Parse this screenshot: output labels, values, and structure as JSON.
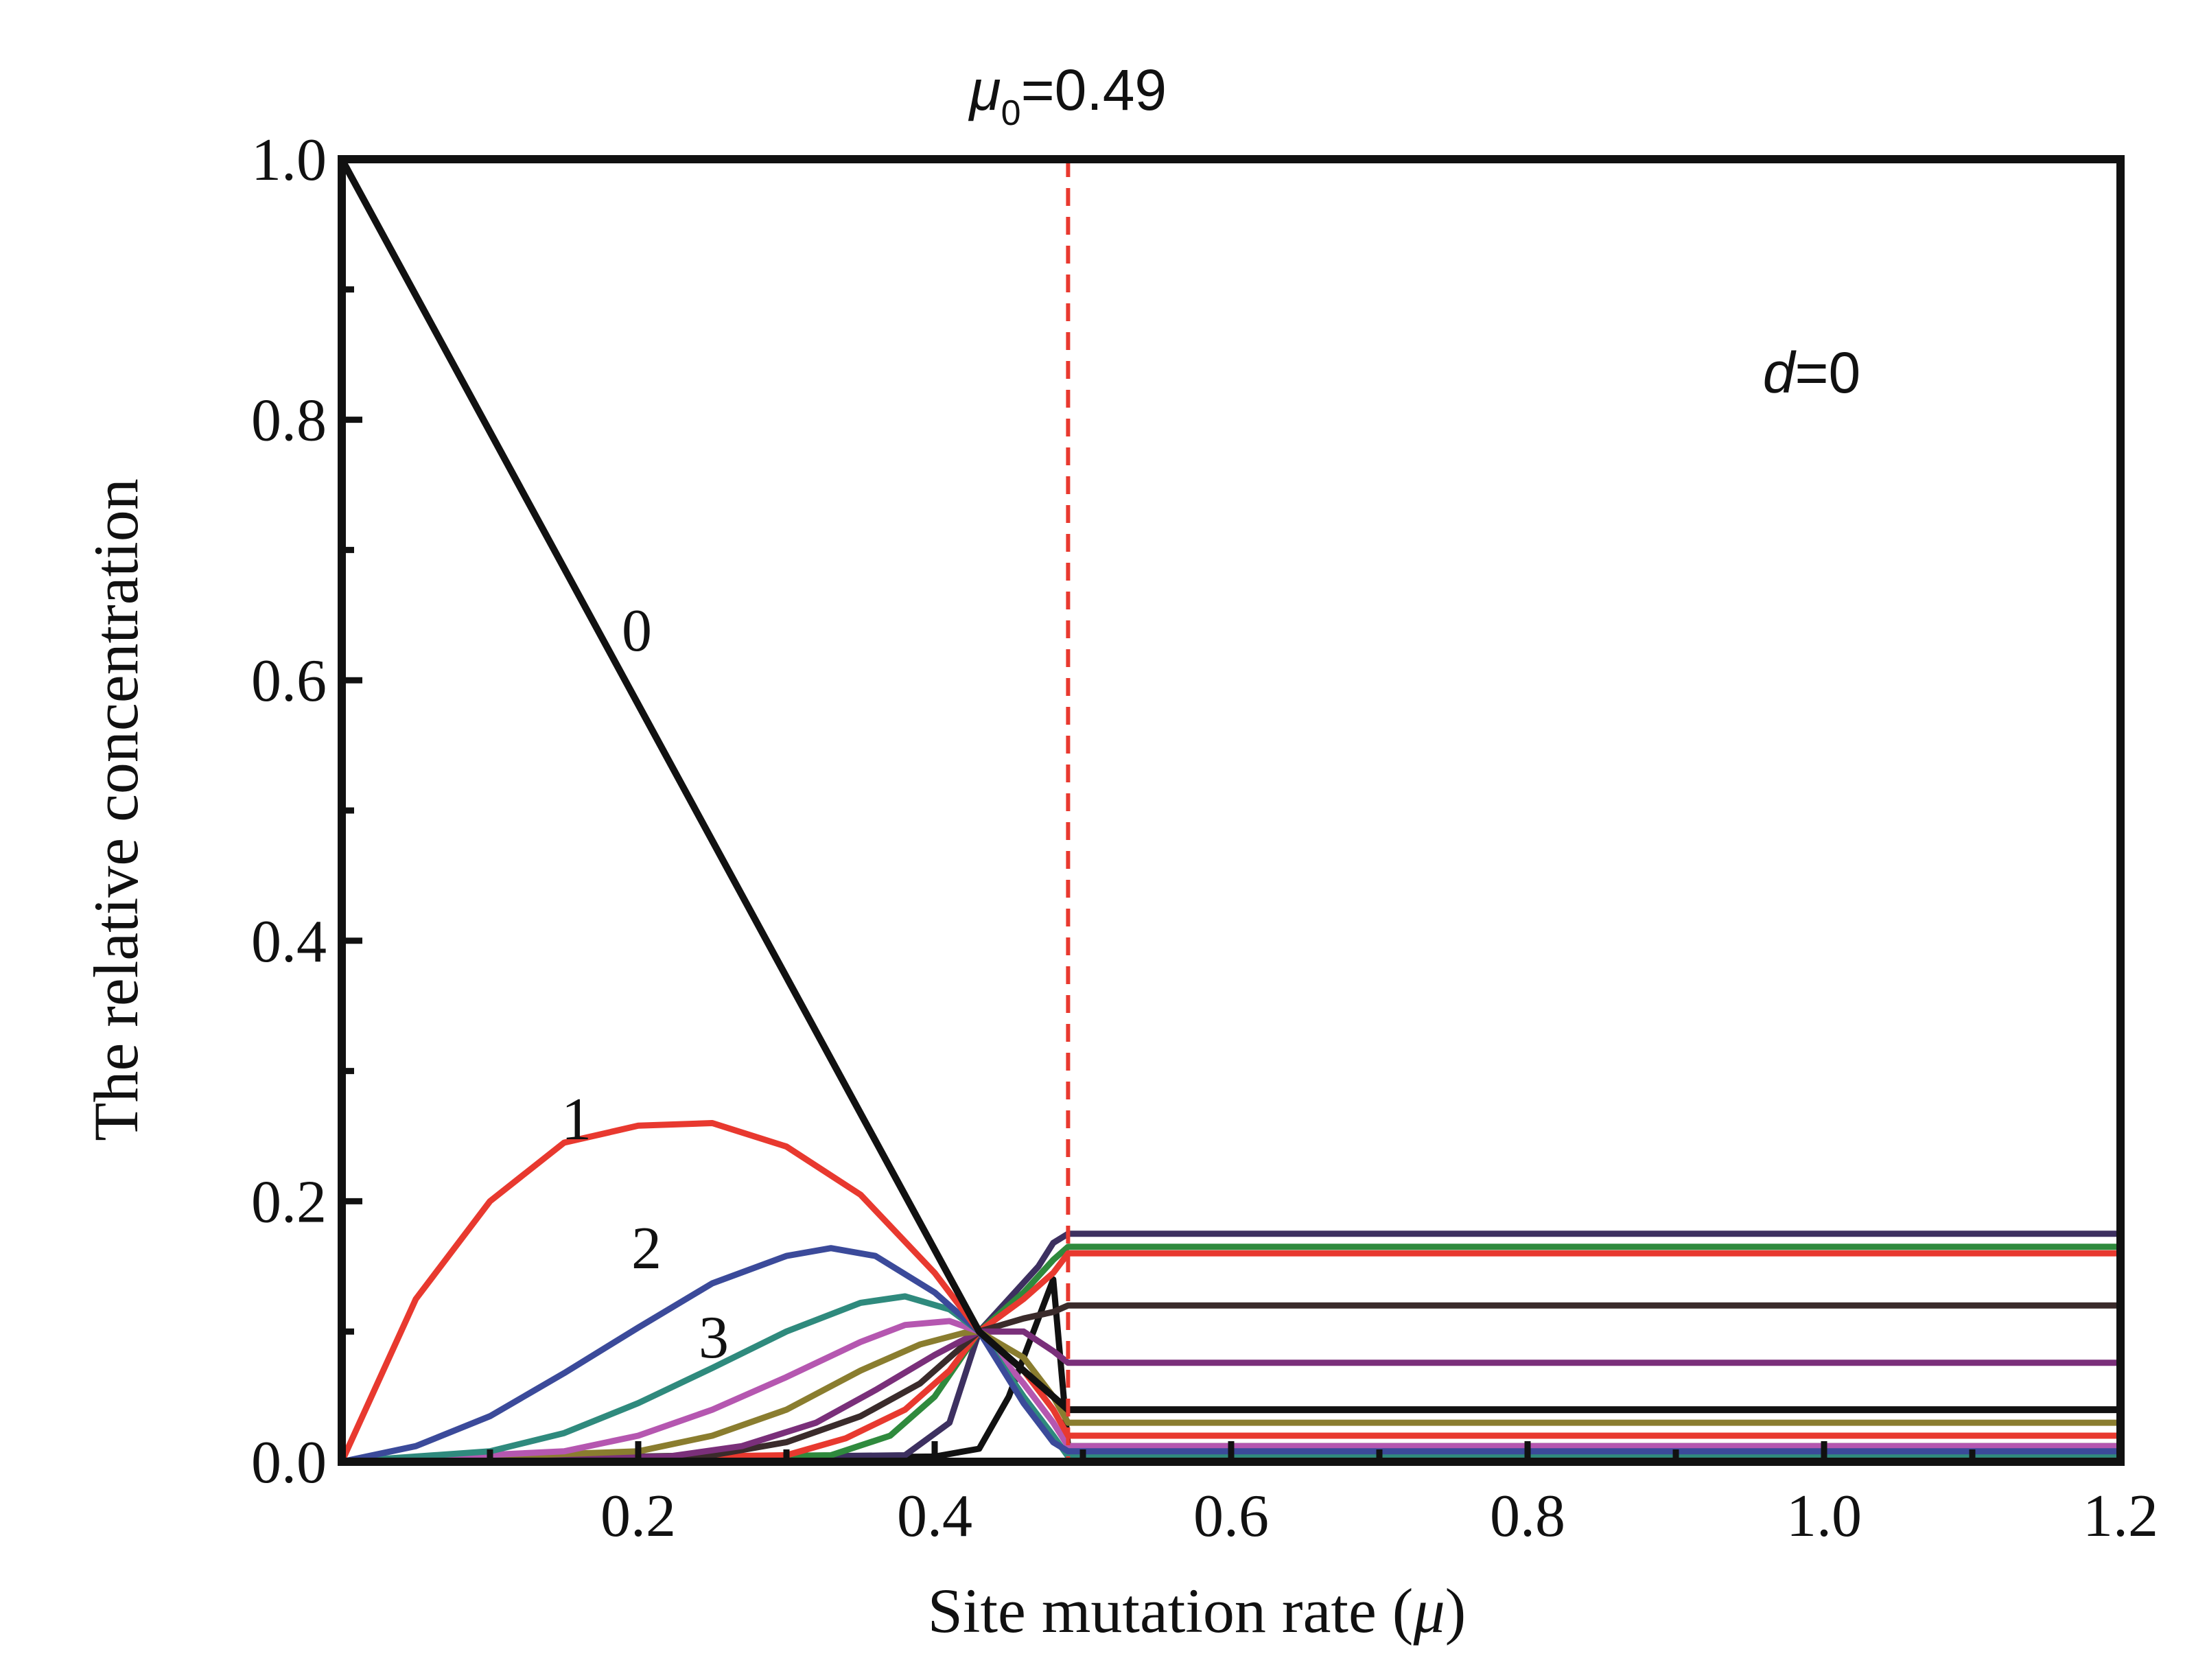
{
  "chart_data": {
    "type": "line",
    "xlabel_prefix": "Site mutation rate (",
    "xlabel_var": "μ",
    "xlabel_suffix": ")",
    "ylabel": "The relative concentration",
    "xlim": [
      0.0,
      1.2
    ],
    "ylim": [
      0.0,
      1.0
    ],
    "x_ticks": [
      0.2,
      0.4,
      0.6,
      0.8,
      1.0,
      1.2
    ],
    "x_tick_labels": [
      "0.2",
      "0.4",
      "0.6",
      "0.8",
      "1.0",
      "1.2"
    ],
    "y_ticks": [
      0.0,
      0.2,
      0.4,
      0.6,
      0.8,
      1.0
    ],
    "y_tick_labels": [
      "0.0",
      "0.2",
      "0.4",
      "0.6",
      "0.8",
      "1.0"
    ],
    "grid": false,
    "threshold": {
      "x": 0.49,
      "label_var": "μ",
      "label_sub": "0",
      "label_value": "=0.49",
      "color": "#e8392f"
    },
    "annotation": {
      "var": "d",
      "value": "=0"
    },
    "series": [
      {
        "label": "0",
        "color": "#111111",
        "x": [
          0.0,
          0.43,
          0.49,
          1.2
        ],
        "y": [
          1.0,
          0.1,
          0.04,
          0.04
        ]
      },
      {
        "label": "1",
        "color": "#e8392f",
        "x": [
          0.0,
          0.05,
          0.1,
          0.15,
          0.2,
          0.25,
          0.3,
          0.35,
          0.4,
          0.43,
          0.46,
          0.48,
          0.49,
          1.2
        ],
        "y": [
          0.0,
          0.125,
          0.2,
          0.245,
          0.258,
          0.26,
          0.242,
          0.205,
          0.145,
          0.1,
          0.07,
          0.04,
          0.02,
          0.02
        ]
      },
      {
        "label": "2",
        "color": "#3b4a9a",
        "x": [
          0.0,
          0.05,
          0.1,
          0.15,
          0.2,
          0.25,
          0.3,
          0.33,
          0.36,
          0.4,
          0.43,
          0.46,
          0.48,
          0.49,
          1.2
        ],
        "y": [
          0.0,
          0.012,
          0.035,
          0.068,
          0.103,
          0.137,
          0.158,
          0.164,
          0.158,
          0.13,
          0.1,
          0.045,
          0.015,
          0.008,
          0.008
        ]
      },
      {
        "label": "3",
        "color": "#2f8a7d",
        "x": [
          0.0,
          0.1,
          0.15,
          0.2,
          0.25,
          0.3,
          0.35,
          0.38,
          0.41,
          0.43,
          0.46,
          0.48,
          0.49,
          1.2
        ],
        "y": [
          0.0,
          0.008,
          0.022,
          0.045,
          0.072,
          0.1,
          0.122,
          0.127,
          0.117,
          0.1,
          0.05,
          0.02,
          0.004,
          0.004
        ]
      },
      {
        "label": "",
        "color": "#b557b0",
        "x": [
          0.0,
          0.15,
          0.2,
          0.25,
          0.3,
          0.35,
          0.38,
          0.41,
          0.43,
          0.46,
          0.48,
          0.49,
          1.2
        ],
        "y": [
          0.0,
          0.008,
          0.02,
          0.04,
          0.065,
          0.092,
          0.105,
          0.108,
          0.1,
          0.06,
          0.03,
          0.012,
          0.012
        ]
      },
      {
        "label": "",
        "color": "#8a7d2f",
        "x": [
          0.0,
          0.2,
          0.25,
          0.3,
          0.35,
          0.39,
          0.42,
          0.43,
          0.46,
          0.48,
          0.49,
          1.2
        ],
        "y": [
          0.0,
          0.008,
          0.02,
          0.04,
          0.07,
          0.09,
          0.099,
          0.1,
          0.08,
          0.05,
          0.03,
          0.03
        ]
      },
      {
        "label": "",
        "color": "#7a2f7a",
        "x": [
          0.0,
          0.22,
          0.27,
          0.32,
          0.36,
          0.4,
          0.43,
          0.46,
          0.48,
          0.49,
          1.2
        ],
        "y": [
          0.0,
          0.004,
          0.012,
          0.03,
          0.055,
          0.082,
          0.1,
          0.1,
          0.085,
          0.076,
          0.076
        ]
      },
      {
        "label": "",
        "color": "#3a2b2b",
        "x": [
          0.0,
          0.25,
          0.3,
          0.35,
          0.39,
          0.43,
          0.46,
          0.48,
          0.49,
          1.2
        ],
        "y": [
          0.0,
          0.005,
          0.015,
          0.035,
          0.06,
          0.1,
          0.11,
          0.115,
          0.12,
          0.12
        ]
      },
      {
        "label": "",
        "color": "#e8392f",
        "x": [
          0.0,
          0.3,
          0.34,
          0.38,
          0.41,
          0.43,
          0.46,
          0.48,
          0.49,
          1.2
        ],
        "y": [
          0.0,
          0.005,
          0.018,
          0.04,
          0.07,
          0.1,
          0.125,
          0.145,
          0.16,
          0.16
        ]
      },
      {
        "label": "",
        "color": "#2f8a3d",
        "x": [
          0.0,
          0.33,
          0.37,
          0.4,
          0.43,
          0.46,
          0.48,
          0.49,
          1.2
        ],
        "y": [
          0.0,
          0.005,
          0.02,
          0.05,
          0.1,
          0.13,
          0.155,
          0.165,
          0.165
        ]
      },
      {
        "label": "",
        "color": "#3d3060",
        "x": [
          0.0,
          0.38,
          0.41,
          0.43,
          0.45,
          0.47,
          0.48,
          0.49,
          1.2
        ],
        "y": [
          0.0,
          0.005,
          0.03,
          0.1,
          0.125,
          0.15,
          0.168,
          0.175,
          0.175
        ]
      },
      {
        "label": "",
        "color": "#111111",
        "x": [
          0.0,
          0.4,
          0.43,
          0.45,
          0.47,
          0.48,
          0.49,
          1.2
        ],
        "y": [
          0.0,
          0.004,
          0.01,
          0.05,
          0.11,
          0.14,
          0.012,
          0.012
        ]
      }
    ]
  }
}
